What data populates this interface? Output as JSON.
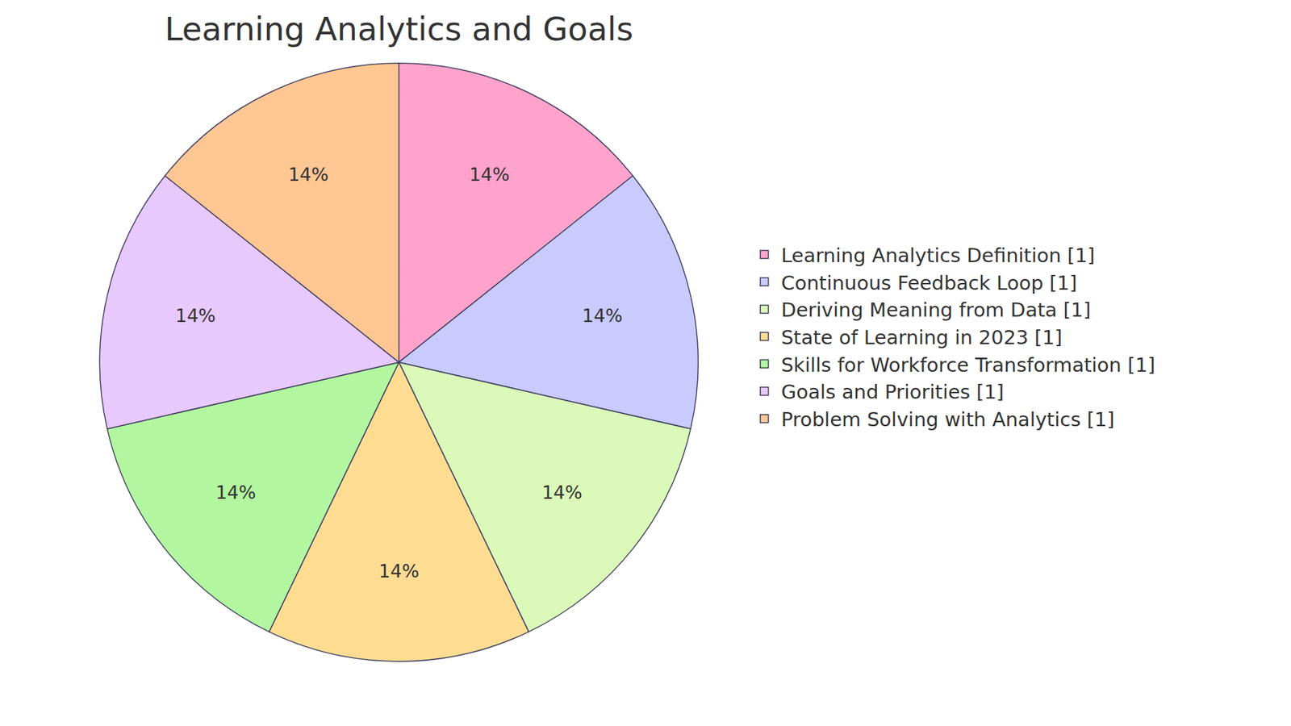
{
  "chart_data": {
    "type": "pie",
    "title": "Learning Analytics and Goals",
    "categories": [
      "Learning Analytics Definition [1]",
      "Continuous Feedback Loop [1]",
      "Deriving Meaning from Data [1]",
      "State of Learning in 2023 [1]",
      "Skills for Workforce Transformation [1]",
      "Goals and Priorities [1]",
      "Problem Solving with Analytics [1]"
    ],
    "values": [
      14,
      14,
      14,
      14,
      14,
      14,
      14
    ],
    "value_labels": [
      "14%",
      "14%",
      "14%",
      "14%",
      "14%",
      "14%",
      "14%"
    ],
    "colors": [
      "#ffa3cc",
      "#c9cbff",
      "#dbf9b8",
      "#fedd93",
      "#b2f7a0",
      "#e8c9fe",
      "#ffc794"
    ],
    "data_labels": true,
    "legend": "right"
  }
}
